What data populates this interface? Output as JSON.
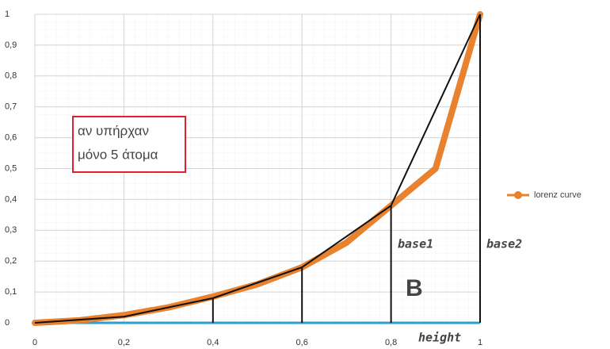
{
  "chart_data": {
    "type": "line",
    "series": [
      {
        "name": "lorenz curve",
        "color": "#e8822e",
        "x": [
          0,
          0.1,
          0.2,
          0.3,
          0.4,
          0.5,
          0.6,
          0.7,
          0.8,
          0.9,
          1
        ],
        "values": [
          0,
          0.008,
          0.025,
          0.05,
          0.085,
          0.125,
          0.18,
          0.26,
          0.38,
          0.5,
          1
        ]
      }
    ],
    "segments": {
      "color": "#111",
      "x": [
        0,
        0.2,
        0.4,
        0.6,
        0.8,
        1
      ],
      "values": [
        0,
        0.02,
        0.08,
        0.18,
        0.38,
        1
      ]
    },
    "baseline_color": "#2a9fd6",
    "xlim": [
      0,
      1
    ],
    "ylim": [
      0,
      1
    ],
    "xticks": [
      0,
      {
        "value": 0.2,
        "label": "0,2"
      },
      {
        "value": 0.4,
        "label": "0,4"
      },
      {
        "value": 0.6,
        "label": "0,6"
      },
      {
        "value": 0.8,
        "label": "0,8"
      },
      1
    ],
    "yticks": [
      0,
      {
        "value": 0.1,
        "label": "0,1"
      },
      {
        "value": 0.2,
        "label": "0,2"
      },
      {
        "value": 0.3,
        "label": "0,3"
      },
      {
        "value": 0.4,
        "label": "0,4"
      },
      {
        "value": 0.5,
        "label": "0,5"
      },
      {
        "value": 0.6,
        "label": "0,6"
      },
      {
        "value": 0.7,
        "label": "0,7"
      },
      {
        "value": 0.8,
        "label": "0,8"
      },
      {
        "value": 0.9,
        "label": "0,9"
      },
      1
    ],
    "grid": true,
    "annotations": {
      "box": [
        "αν υπήρχαν",
        "μόνο 5 άτομα"
      ],
      "box_color": "#e0202a",
      "base1": "base1",
      "base2": "base2",
      "height": "height",
      "area": "B"
    }
  }
}
